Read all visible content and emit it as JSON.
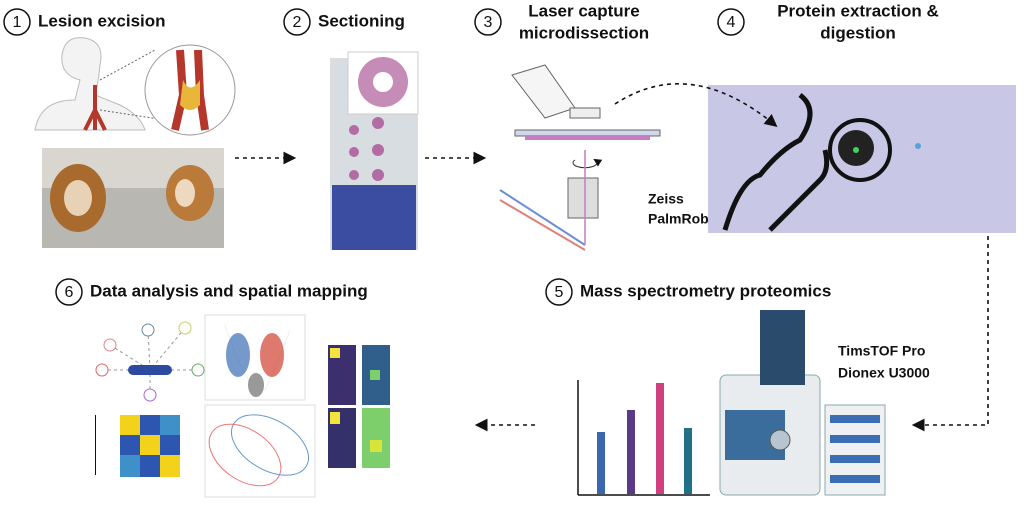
{
  "steps": [
    {
      "number": "1",
      "label": [
        "Lesion excision"
      ]
    },
    {
      "number": "2",
      "label": [
        "Sectioning"
      ]
    },
    {
      "number": "3",
      "label": [
        "Laser capture",
        "microdissection"
      ]
    },
    {
      "number": "4",
      "label": [
        "Protein extraction &",
        "digestion"
      ]
    },
    {
      "number": "5",
      "label": [
        "Mass spectrometry proteomics"
      ]
    },
    {
      "number": "6",
      "label": [
        "Data analysis and spatial mapping"
      ]
    }
  ],
  "instruments": [
    {
      "label": [
        "Zeiss",
        "PalmRobo"
      ]
    },
    {
      "label": [
        "TimsTOF Pro",
        "Dionex U3000"
      ]
    }
  ]
}
